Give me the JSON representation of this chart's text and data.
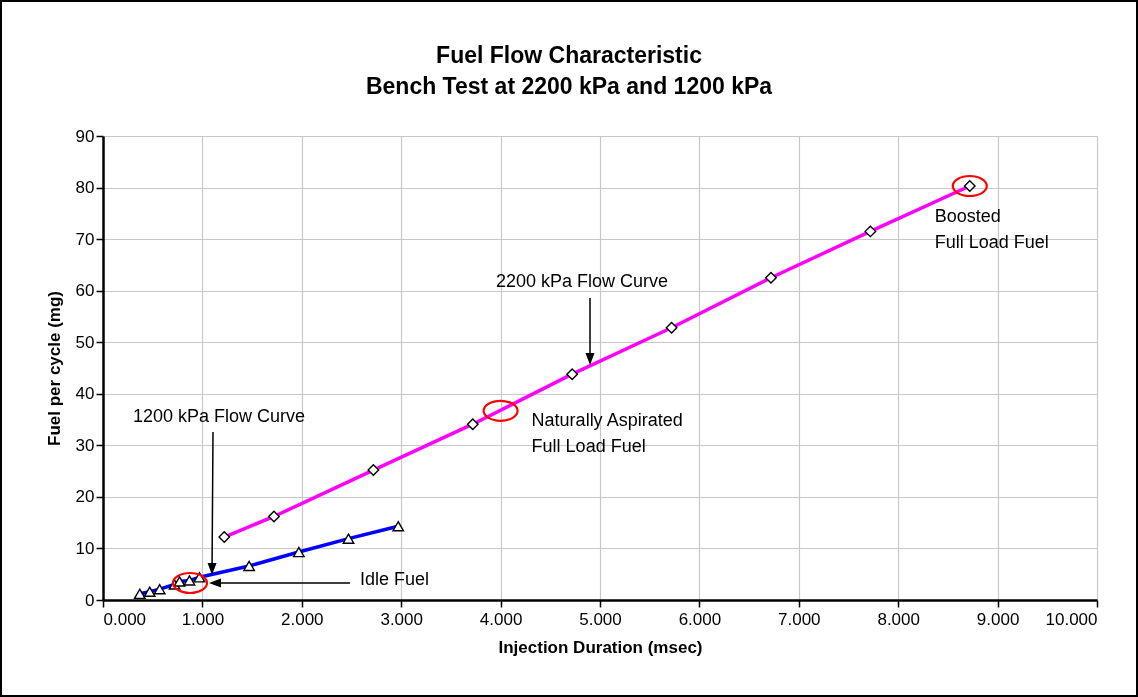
{
  "chart_data": {
    "type": "line",
    "title": "Fuel Flow Characteristic",
    "subtitle": "Bench Test at 2200 kPa and 1200 kPa",
    "xlabel": "Injection Duration (msec)",
    "ylabel": "Fuel per cycle (mg)",
    "series": [
      {
        "color": "#ff00ff",
        "marker": "diamond",
        "x": [
          1.22,
          1.72,
          2.72,
          3.72,
          4.72,
          5.72,
          6.72,
          7.72,
          8.72
        ],
        "values": [
          12.2,
          16.2,
          25.2,
          34.1,
          43.8,
          52.8,
          62.5,
          71.5,
          80.3
        ]
      },
      {
        "color": "#0000ff",
        "marker": "triangle",
        "x": [
          0.37,
          0.47,
          0.57,
          0.72,
          0.77,
          0.87,
          0.97,
          1.47,
          1.97,
          2.47,
          2.97
        ],
        "values": [
          1.2,
          1.6,
          2.1,
          3.0,
          3.6,
          3.8,
          4.4,
          6.6,
          9.3,
          11.9,
          14.3
        ]
      }
    ],
    "xlim": [
      0,
      10
    ],
    "ylim": [
      0,
      90
    ],
    "xticks": [
      {
        "value": 0,
        "label": "0.000"
      },
      {
        "value": 1,
        "label": "1.000"
      },
      {
        "value": 2,
        "label": "2.000"
      },
      {
        "value": 3,
        "label": "3.000"
      },
      {
        "value": 4,
        "label": "4.000"
      },
      {
        "value": 5,
        "label": "5.000"
      },
      {
        "value": 6,
        "label": "6.000"
      },
      {
        "value": 7,
        "label": "7.000"
      },
      {
        "value": 8,
        "label": "8.000"
      },
      {
        "value": 9,
        "label": "9.000"
      },
      {
        "value": 10,
        "label": "10.000"
      }
    ],
    "yticks": [
      0,
      10,
      20,
      30,
      40,
      50,
      60,
      70,
      80,
      90
    ],
    "grid": true,
    "annotations": [
      "2200 kPa Flow Curve",
      "1200 kPa Flow Curve",
      "Idle Fuel",
      {
        "text": "Naturally Aspirated\nFull Load Fuel",
        "x": 4.0,
        "y": 36.7
      },
      {
        "text": "Boosted\nFull Load Fuel",
        "x": 8.72,
        "y": 80.3
      }
    ]
  }
}
